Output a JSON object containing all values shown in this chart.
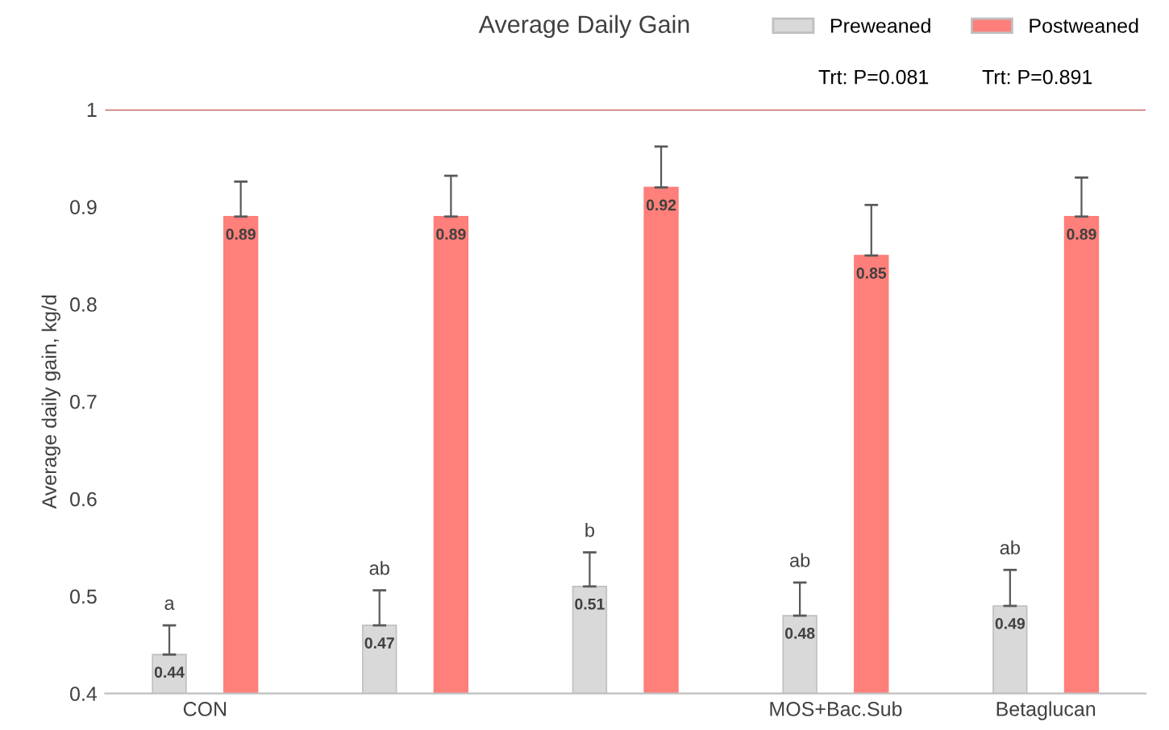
{
  "chart_data": {
    "type": "bar",
    "title": "Average Daily Gain",
    "ylabel": "Average daily gain, kg/d",
    "categories": [
      "CON",
      null,
      null,
      "MOS+Bac.Sub",
      "Betaglucan"
    ],
    "series": [
      {
        "name": "Preweaned",
        "color": "#d9d9d9",
        "values": [
          0.44,
          0.47,
          0.51,
          0.48,
          0.49
        ],
        "errors": [
          [
            0.44,
            0.47
          ],
          [
            0.47,
            0.506
          ],
          [
            0.51,
            0.545
          ],
          [
            0.48,
            0.514
          ],
          [
            0.49,
            0.527
          ]
        ]
      },
      {
        "name": "Postweaned",
        "color": "#ff7f7a",
        "values": [
          0.89,
          0.89,
          0.92,
          0.85,
          0.89
        ],
        "errors": [
          [
            0.89,
            0.926
          ],
          [
            0.89,
            0.932
          ],
          [
            0.92,
            0.962
          ],
          [
            0.85,
            0.902
          ],
          [
            0.89,
            0.93
          ]
        ]
      }
    ],
    "data_labels": true,
    "annotations": [
      "a",
      "ab",
      "b",
      "ab",
      "ab",
      "Trt: P=0.081",
      "Trt: P=0.891"
    ],
    "ref_lines": [
      {
        "axis": "y",
        "value": 1,
        "color": "#c0504d"
      }
    ],
    "ylim": [
      0.4,
      1
    ],
    "yticks": [
      0.4,
      0.5,
      0.6,
      0.7,
      0.8,
      0.9,
      1
    ],
    "grid": false,
    "legend": "top right"
  }
}
